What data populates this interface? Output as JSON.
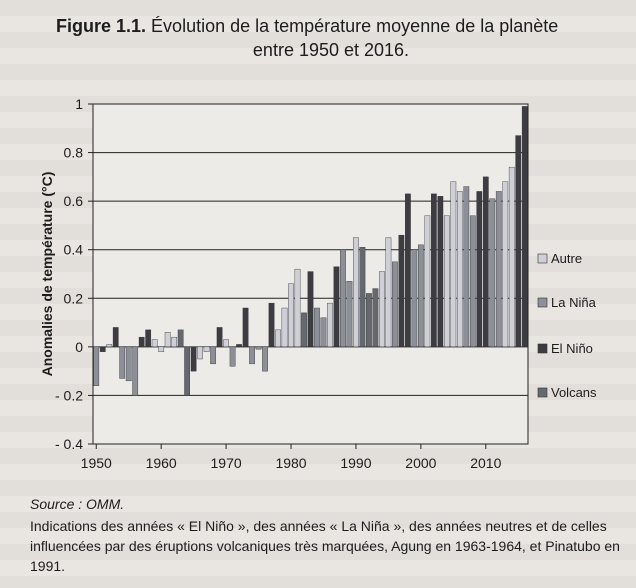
{
  "figure": {
    "label": "Figure 1.1.",
    "title_line1": "Évolution de la température moyenne de la planète",
    "title_line2": "entre 1950 et 2016."
  },
  "chart_data": {
    "type": "bar",
    "ylabel": "Anomalies de température (°C)",
    "ylim": [
      -0.4,
      1
    ],
    "yticks": [
      "1",
      "0.8",
      "0.6",
      "0.4",
      "0.2",
      "0",
      "- 0.2",
      "- 0.4"
    ],
    "xlim": [
      1950,
      2016
    ],
    "xticks": [
      "1950",
      "1960",
      "1970",
      "1980",
      "1990",
      "2000",
      "2010"
    ],
    "grid": "horizontal",
    "legend_position": "right",
    "series": [
      {
        "name": "Autre",
        "color": "#cfcfd8"
      },
      {
        "name": "La Niña",
        "color": "#8d8f98"
      },
      {
        "name": "El Niño",
        "color": "#3c3c42"
      },
      {
        "name": "Volcans",
        "color": "#666870"
      }
    ],
    "points": [
      {
        "year": 1950,
        "value": -0.16,
        "series": "La Niña"
      },
      {
        "year": 1951,
        "value": -0.02,
        "series": "El Niño"
      },
      {
        "year": 1952,
        "value": 0.01,
        "series": "Autre"
      },
      {
        "year": 1953,
        "value": 0.08,
        "series": "El Niño"
      },
      {
        "year": 1954,
        "value": -0.13,
        "series": "La Niña"
      },
      {
        "year": 1955,
        "value": -0.14,
        "series": "La Niña"
      },
      {
        "year": 1956,
        "value": -0.2,
        "series": "La Niña"
      },
      {
        "year": 1957,
        "value": 0.04,
        "series": "El Niño"
      },
      {
        "year": 1958,
        "value": 0.07,
        "series": "El Niño"
      },
      {
        "year": 1959,
        "value": 0.03,
        "series": "Autre"
      },
      {
        "year": 1960,
        "value": -0.02,
        "series": "Autre"
      },
      {
        "year": 1961,
        "value": 0.06,
        "series": "Autre"
      },
      {
        "year": 1962,
        "value": 0.04,
        "series": "Autre"
      },
      {
        "year": 1963,
        "value": 0.07,
        "series": "Volcans"
      },
      {
        "year": 1964,
        "value": -0.2,
        "series": "Volcans"
      },
      {
        "year": 1965,
        "value": -0.1,
        "series": "El Niño"
      },
      {
        "year": 1966,
        "value": -0.05,
        "series": "Autre"
      },
      {
        "year": 1967,
        "value": -0.02,
        "series": "Autre"
      },
      {
        "year": 1968,
        "value": -0.07,
        "series": "La Niña"
      },
      {
        "year": 1969,
        "value": 0.08,
        "series": "El Niño"
      },
      {
        "year": 1970,
        "value": 0.03,
        "series": "Autre"
      },
      {
        "year": 1971,
        "value": -0.08,
        "series": "La Niña"
      },
      {
        "year": 1972,
        "value": 0.01,
        "series": "El Niño"
      },
      {
        "year": 1973,
        "value": 0.16,
        "series": "El Niño"
      },
      {
        "year": 1974,
        "value": -0.07,
        "series": "La Niña"
      },
      {
        "year": 1975,
        "value": -0.01,
        "series": "La Niña"
      },
      {
        "year": 1976,
        "value": -0.1,
        "series": "La Niña"
      },
      {
        "year": 1977,
        "value": 0.18,
        "series": "El Niño"
      },
      {
        "year": 1978,
        "value": 0.07,
        "series": "Autre"
      },
      {
        "year": 1979,
        "value": 0.16,
        "series": "Autre"
      },
      {
        "year": 1980,
        "value": 0.26,
        "series": "Autre"
      },
      {
        "year": 1981,
        "value": 0.32,
        "series": "Autre"
      },
      {
        "year": 1982,
        "value": 0.14,
        "series": "Volcans"
      },
      {
        "year": 1983,
        "value": 0.31,
        "series": "El Niño"
      },
      {
        "year": 1984,
        "value": 0.16,
        "series": "La Niña"
      },
      {
        "year": 1985,
        "value": 0.12,
        "series": "La Niña"
      },
      {
        "year": 1986,
        "value": 0.18,
        "series": "Autre"
      },
      {
        "year": 1987,
        "value": 0.33,
        "series": "El Niño"
      },
      {
        "year": 1988,
        "value": 0.4,
        "series": "La Niña"
      },
      {
        "year": 1989,
        "value": 0.27,
        "series": "La Niña"
      },
      {
        "year": 1990,
        "value": 0.45,
        "series": "Autre"
      },
      {
        "year": 1991,
        "value": 0.41,
        "series": "Volcans"
      },
      {
        "year": 1992,
        "value": 0.22,
        "series": "Volcans"
      },
      {
        "year": 1993,
        "value": 0.24,
        "series": "Volcans"
      },
      {
        "year": 1994,
        "value": 0.31,
        "series": "Autre"
      },
      {
        "year": 1995,
        "value": 0.45,
        "series": "Autre"
      },
      {
        "year": 1996,
        "value": 0.35,
        "series": "La Niña"
      },
      {
        "year": 1997,
        "value": 0.46,
        "series": "El Niño"
      },
      {
        "year": 1998,
        "value": 0.63,
        "series": "El Niño"
      },
      {
        "year": 1999,
        "value": 0.4,
        "series": "La Niña"
      },
      {
        "year": 2000,
        "value": 0.42,
        "series": "La Niña"
      },
      {
        "year": 2001,
        "value": 0.54,
        "series": "Autre"
      },
      {
        "year": 2002,
        "value": 0.63,
        "series": "El Niño"
      },
      {
        "year": 2003,
        "value": 0.62,
        "series": "El Niño"
      },
      {
        "year": 2004,
        "value": 0.54,
        "series": "Autre"
      },
      {
        "year": 2005,
        "value": 0.68,
        "series": "Autre"
      },
      {
        "year": 2006,
        "value": 0.64,
        "series": "Autre"
      },
      {
        "year": 2007,
        "value": 0.66,
        "series": "La Niña"
      },
      {
        "year": 2008,
        "value": 0.54,
        "series": "La Niña"
      },
      {
        "year": 2009,
        "value": 0.64,
        "series": "El Niño"
      },
      {
        "year": 2010,
        "value": 0.7,
        "series": "El Niño"
      },
      {
        "year": 2011,
        "value": 0.61,
        "series": "La Niña"
      },
      {
        "year": 2012,
        "value": 0.64,
        "series": "La Niña"
      },
      {
        "year": 2013,
        "value": 0.68,
        "series": "Autre"
      },
      {
        "year": 2014,
        "value": 0.74,
        "series": "Autre"
      },
      {
        "year": 2015,
        "value": 0.87,
        "series": "El Niño"
      },
      {
        "year": 2016,
        "value": 0.99,
        "series": "El Niño"
      }
    ]
  },
  "caption": {
    "source": "Source : OMM.",
    "note": "Indications des années « El Niño », des années « La Niña », des années neutres et de celles influencées par des éruptions volcaniques très marquées, Agung en 1963-1964, et Pinatubo en 1991."
  }
}
